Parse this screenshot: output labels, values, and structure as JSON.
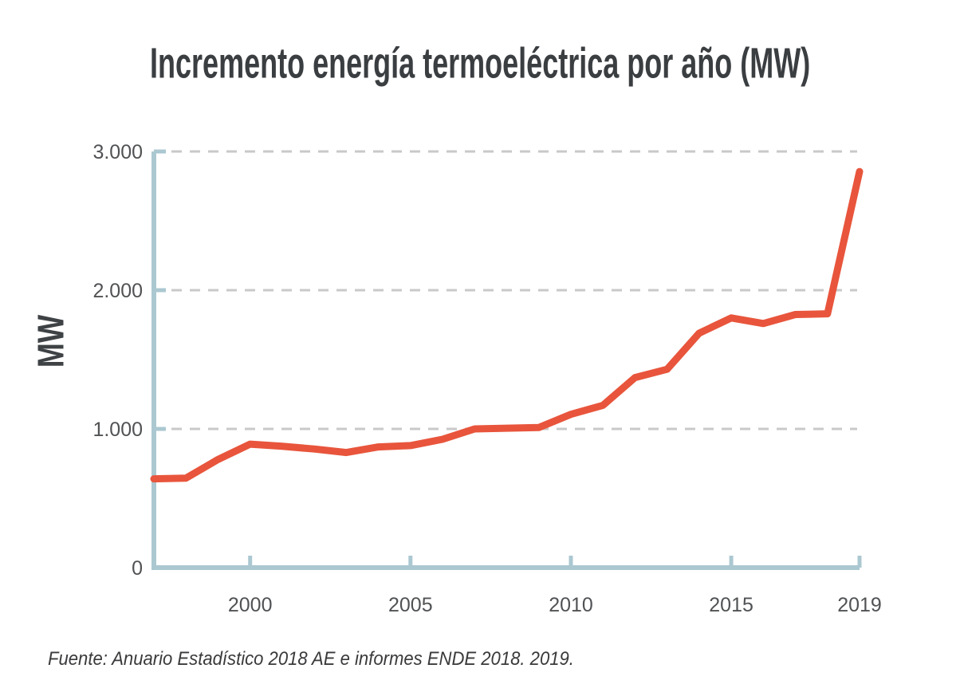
{
  "chart_data": {
    "type": "line",
    "title": "Incremento energía termoeléctrica por año (MW)",
    "ylabel": "MW",
    "source": "Fuente: Anuario Estadístico 2018 AE e informes ENDE 2018. 2019.",
    "xlim": [
      1997,
      2019
    ],
    "ylim": [
      0,
      3000
    ],
    "grid": "horizontal-dashed",
    "legend": "none",
    "x": [
      1997,
      1998,
      1999,
      2000,
      2001,
      2002,
      2003,
      2004,
      2005,
      2006,
      2007,
      2008,
      2009,
      2010,
      2011,
      2012,
      2013,
      2014,
      2015,
      2016,
      2017,
      2018,
      2019
    ],
    "series": [
      {
        "name": "Incremento energía termoeléctrica (MW)",
        "values": [
          640,
          645,
          780,
          890,
          875,
          855,
          830,
          870,
          880,
          925,
          1000,
          1005,
          1010,
          1105,
          1170,
          1370,
          1430,
          1690,
          1800,
          1760,
          1825,
          1830,
          2855
        ]
      }
    ],
    "x_ticks": [
      {
        "value": 2000,
        "label": "2000"
      },
      {
        "value": 2005,
        "label": "2005"
      },
      {
        "value": 2010,
        "label": "2010"
      },
      {
        "value": 2015,
        "label": "2015"
      },
      {
        "value": 2019,
        "label": "2019"
      }
    ],
    "y_ticks": [
      {
        "value": 0,
        "label": "0"
      },
      {
        "value": 1000,
        "label": "1.000"
      },
      {
        "value": 2000,
        "label": "2.000"
      },
      {
        "value": 3000,
        "label": "3.000"
      }
    ],
    "colors": {
      "line": "#e8553c",
      "axis": "#abc8d1",
      "grid": "#c9c9c9",
      "title": "#3b3e41",
      "ylabel": "#3f4245",
      "tick_label": "#505254",
      "source": "#3a3a3c",
      "background": "#ffffff"
    }
  }
}
